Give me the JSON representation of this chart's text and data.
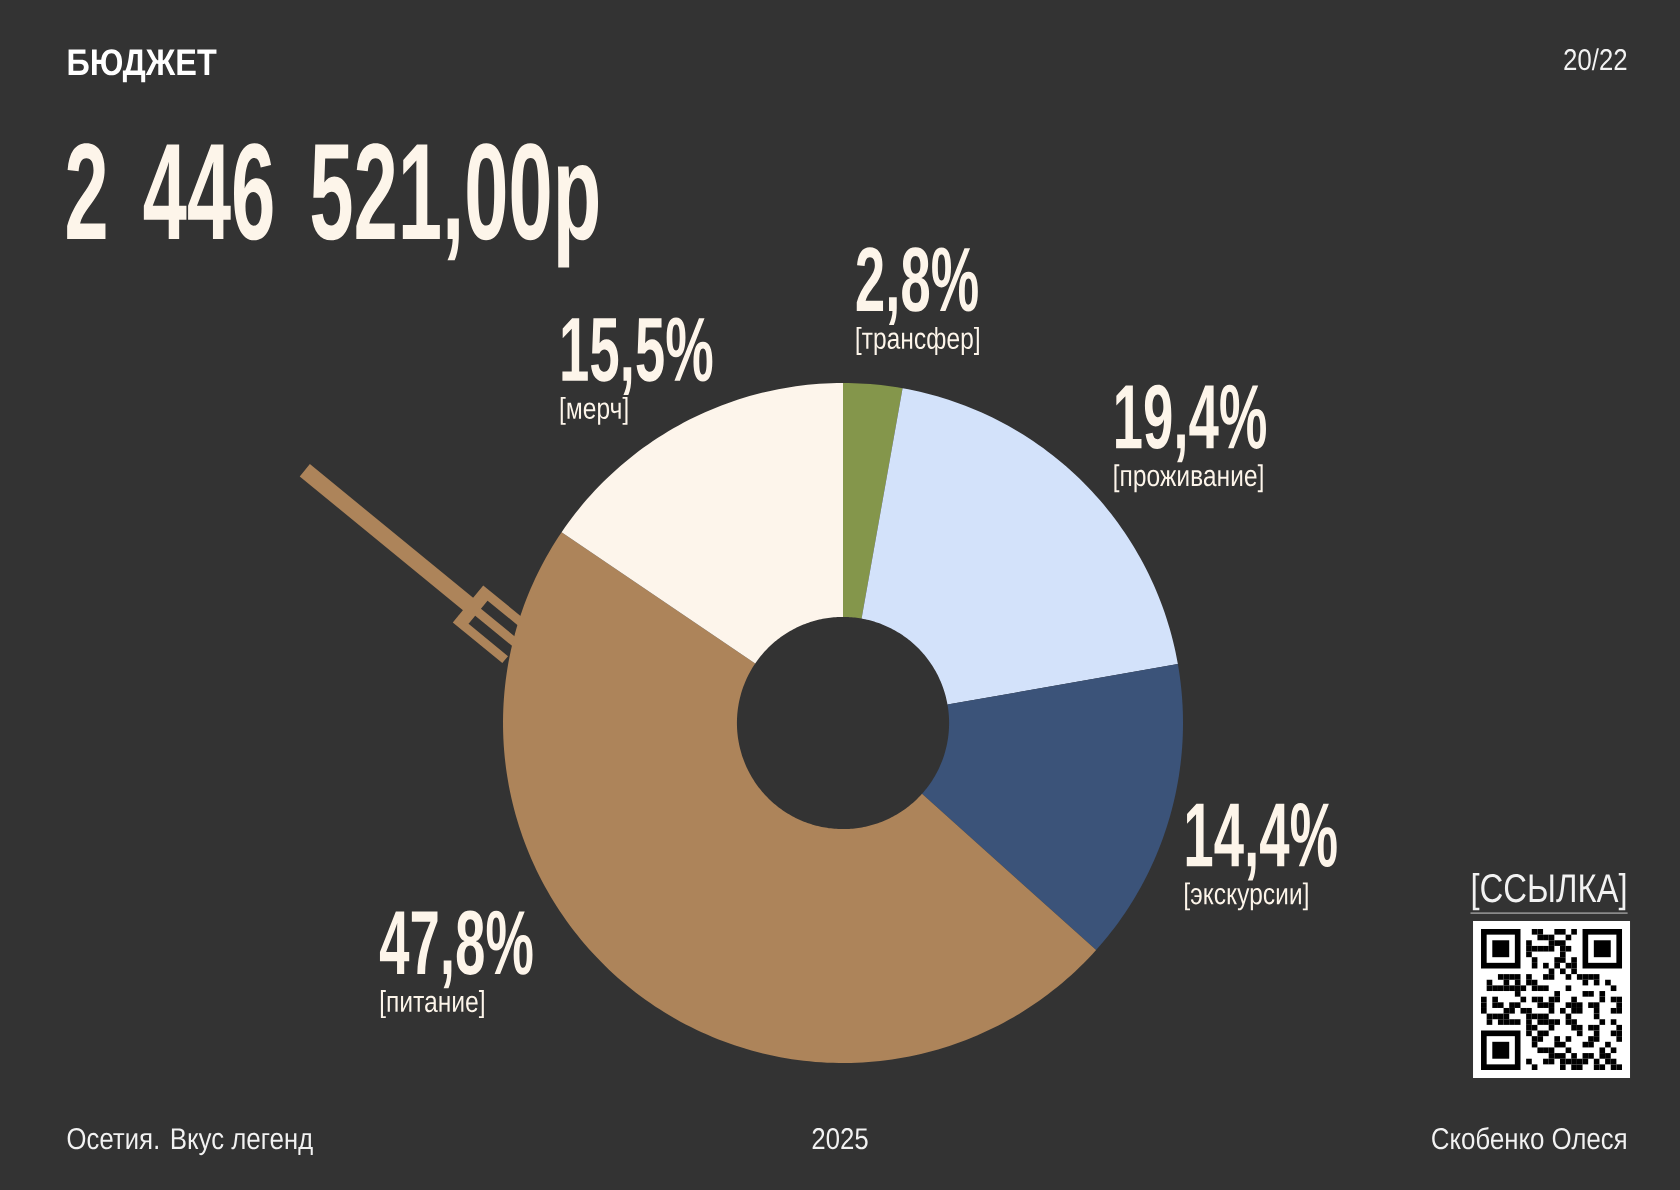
{
  "chart_data": {
    "type": "donut",
    "title": "БЮДЖЕТ",
    "subtitle": "2 446 521,00р",
    "categories": [
      "[трансфер]",
      "[проживание]",
      "[экскурсии]",
      "[питание]",
      "[мерч]"
    ],
    "values": [
      2.8,
      19.4,
      14.4,
      47.8,
      15.5
    ],
    "colors": [
      "#84964b",
      "#d3e2fa",
      "#3b5379",
      "#ad845a",
      "#fdf5eb"
    ],
    "value_labels": [
      "2,8%",
      "19,4%",
      "14,4%",
      "47,8%",
      "15,5%"
    ],
    "annotations": [
      "20/22",
      "[ССЫЛКА]",
      "Осетия. Вкус легенд",
      "2025",
      "Скобенко Олеся"
    ]
  }
}
